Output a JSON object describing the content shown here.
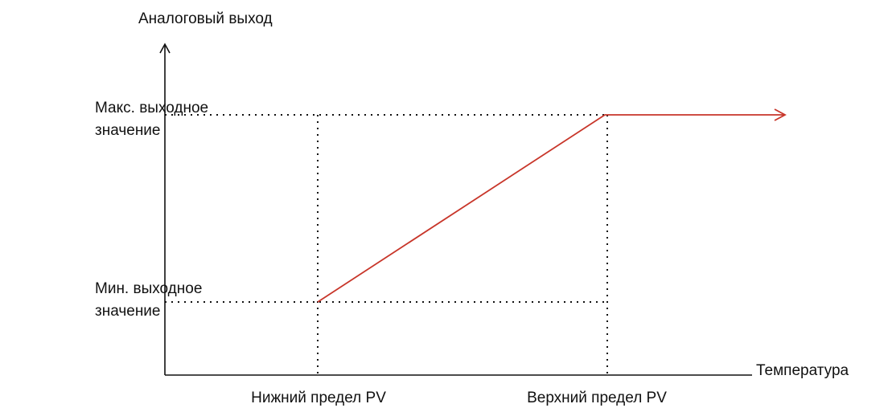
{
  "y_axis_label": "Аналоговый выход",
  "x_axis_label": "Температура",
  "levels": [
    {
      "lines": [
        "Макс. выходное",
        "значение"
      ]
    },
    {
      "lines": [
        "Мин. выходное",
        "значение"
      ]
    }
  ],
  "limits": [
    "Нижний предел PV",
    "Верхний предел PV"
  ]
}
